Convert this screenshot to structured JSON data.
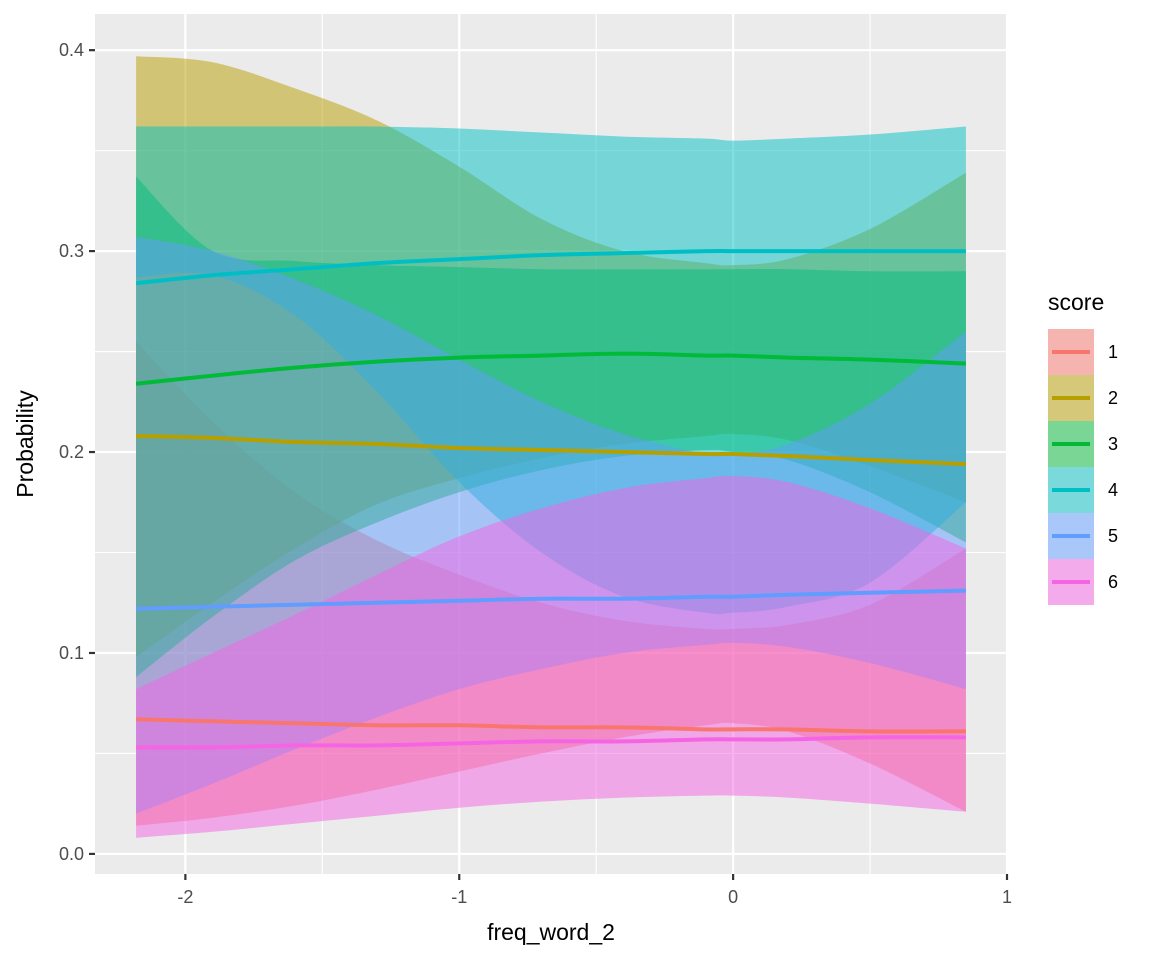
{
  "chart_data": {
    "type": "line",
    "title": "",
    "xlabel": "freq_word_2",
    "ylabel": "Probability",
    "xlim": [
      -2.33,
      1.0
    ],
    "ylim": [
      -0.01,
      0.418
    ],
    "x_ticks": [
      -2,
      -1,
      0,
      1
    ],
    "x_tick_labels": [
      "-2",
      "-1",
      "0",
      "1"
    ],
    "y_ticks": [
      0.0,
      0.1,
      0.2,
      0.3,
      0.4
    ],
    "y_tick_labels": [
      "0.0",
      "0.1",
      "0.2",
      "0.3",
      "0.4"
    ],
    "grid": true,
    "legend": {
      "title": "score",
      "position": "right"
    },
    "x": [
      -2.18,
      -1.9,
      -1.6,
      -1.3,
      -1.0,
      -0.7,
      -0.4,
      -0.1,
      0.0,
      0.2,
      0.5,
      0.85
    ],
    "series": [
      {
        "name": "1",
        "color": "#F8766D",
        "values": [
          0.067,
          0.066,
          0.065,
          0.064,
          0.064,
          0.063,
          0.063,
          0.062,
          0.062,
          0.062,
          0.061,
          0.061
        ],
        "lower": [
          0.014,
          0.018,
          0.024,
          0.032,
          0.041,
          0.05,
          0.058,
          0.064,
          0.065,
          0.061,
          0.045,
          0.021
        ],
        "upper": [
          0.255,
          0.215,
          0.18,
          0.156,
          0.139,
          0.125,
          0.116,
          0.112,
          0.112,
          0.114,
          0.124,
          0.152
        ]
      },
      {
        "name": "2",
        "color": "#B79F00",
        "values": [
          0.208,
          0.207,
          0.205,
          0.204,
          0.202,
          0.201,
          0.2,
          0.199,
          0.199,
          0.198,
          0.196,
          0.194
        ],
        "lower": [
          0.098,
          0.125,
          0.152,
          0.174,
          0.187,
          0.197,
          0.204,
          0.208,
          0.209,
          0.206,
          0.193,
          0.175
        ],
        "upper": [
          0.397,
          0.394,
          0.381,
          0.365,
          0.342,
          0.316,
          0.3,
          0.294,
          0.293,
          0.296,
          0.311,
          0.339
        ]
      },
      {
        "name": "3",
        "color": "#00BA38",
        "values": [
          0.234,
          0.238,
          0.242,
          0.245,
          0.247,
          0.248,
          0.249,
          0.248,
          0.248,
          0.247,
          0.246,
          0.244
        ],
        "lower": [
          0.088,
          0.118,
          0.146,
          0.165,
          0.18,
          0.191,
          0.198,
          0.201,
          0.2,
          0.196,
          0.18,
          0.155
        ],
        "upper": [
          0.337,
          0.3,
          0.295,
          0.293,
          0.292,
          0.291,
          0.291,
          0.291,
          0.291,
          0.291,
          0.29,
          0.29
        ]
      },
      {
        "name": "4",
        "color": "#00BFC4",
        "values": [
          0.284,
          0.288,
          0.291,
          0.294,
          0.296,
          0.298,
          0.299,
          0.3,
          0.3,
          0.3,
          0.3,
          0.3
        ],
        "lower": [
          0.287,
          0.288,
          0.268,
          0.23,
          0.185,
          0.15,
          0.128,
          0.12,
          0.12,
          0.123,
          0.135,
          0.175
        ],
        "upper": [
          0.362,
          0.362,
          0.362,
          0.362,
          0.361,
          0.359,
          0.357,
          0.356,
          0.355,
          0.356,
          0.358,
          0.362
        ]
      },
      {
        "name": "5",
        "color": "#619CFF",
        "values": [
          0.122,
          0.123,
          0.124,
          0.125,
          0.126,
          0.127,
          0.127,
          0.128,
          0.128,
          0.129,
          0.13,
          0.131
        ],
        "lower": [
          0.02,
          0.035,
          0.052,
          0.068,
          0.082,
          0.092,
          0.1,
          0.104,
          0.105,
          0.103,
          0.095,
          0.082
        ],
        "upper": [
          0.307,
          0.3,
          0.286,
          0.268,
          0.246,
          0.225,
          0.209,
          0.199,
          0.199,
          0.204,
          0.224,
          0.26
        ]
      },
      {
        "name": "6",
        "color": "#F564E3",
        "values": [
          0.053,
          0.053,
          0.054,
          0.054,
          0.055,
          0.056,
          0.056,
          0.057,
          0.057,
          0.057,
          0.058,
          0.058
        ],
        "lower": [
          0.008,
          0.011,
          0.015,
          0.019,
          0.023,
          0.026,
          0.028,
          0.029,
          0.029,
          0.028,
          0.025,
          0.021
        ],
        "upper": [
          0.082,
          0.1,
          0.119,
          0.139,
          0.158,
          0.172,
          0.182,
          0.187,
          0.188,
          0.185,
          0.172,
          0.152
        ]
      }
    ]
  }
}
